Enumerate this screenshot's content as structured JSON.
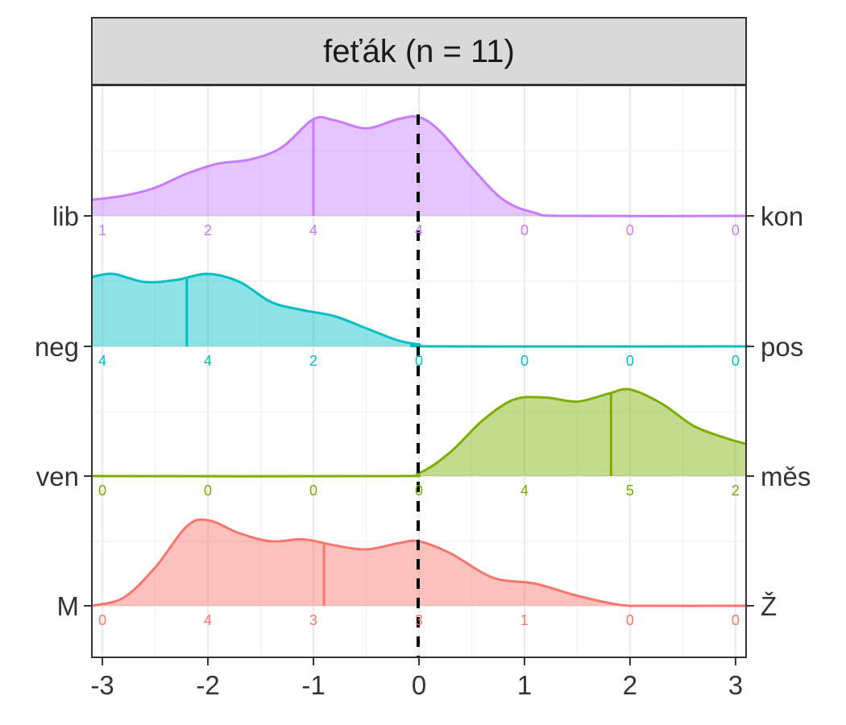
{
  "chart_data": {
    "type": "ridgeline",
    "title": "feťák (n = 11)",
    "xlabel": "",
    "ylabel": "",
    "xlim": [
      -3.1,
      3.1
    ],
    "x_ticks": [
      -3,
      -2,
      -1,
      0,
      1,
      2,
      3
    ],
    "x_tick_labels": [
      "-3",
      "-2",
      "-1",
      "0",
      "1",
      "2",
      "3"
    ],
    "grid": true,
    "reference_line_x": 0,
    "series": [
      {
        "left_label": "lib",
        "right_label": "kon",
        "color": "#C77CFF",
        "median": -1,
        "counts": [
          "1",
          "2",
          "4",
          "4",
          "0",
          "0",
          "0"
        ],
        "density": [
          [
            -3.1,
            0.16
          ],
          [
            -2.8,
            0.2
          ],
          [
            -2.5,
            0.28
          ],
          [
            -2.2,
            0.42
          ],
          [
            -1.9,
            0.52
          ],
          [
            -1.6,
            0.56
          ],
          [
            -1.3,
            0.68
          ],
          [
            -1.0,
            0.96
          ],
          [
            -0.8,
            0.95
          ],
          [
            -0.5,
            0.87
          ],
          [
            -0.2,
            0.96
          ],
          [
            0.0,
            0.98
          ],
          [
            0.2,
            0.84
          ],
          [
            0.5,
            0.48
          ],
          [
            0.8,
            0.16
          ],
          [
            1.1,
            0.03
          ],
          [
            1.4,
            0.0
          ],
          [
            3.1,
            0.0
          ]
        ]
      },
      {
        "left_label": "neg",
        "right_label": "pos",
        "color": "#00BFC4",
        "median": -2.2,
        "counts": [
          "4",
          "4",
          "2",
          "0",
          "0",
          "0",
          "0"
        ],
        "density": [
          [
            -3.1,
            0.69
          ],
          [
            -2.9,
            0.72
          ],
          [
            -2.6,
            0.64
          ],
          [
            -2.3,
            0.66
          ],
          [
            -2.0,
            0.72
          ],
          [
            -1.7,
            0.64
          ],
          [
            -1.4,
            0.44
          ],
          [
            -1.1,
            0.36
          ],
          [
            -0.8,
            0.3
          ],
          [
            -0.5,
            0.18
          ],
          [
            -0.2,
            0.06
          ],
          [
            0.0,
            0.02
          ],
          [
            0.2,
            0.0
          ],
          [
            3.1,
            0.0
          ]
        ]
      },
      {
        "left_label": "ven",
        "right_label": "měs",
        "color": "#7CAE00",
        "median": 1.82,
        "counts": [
          "0",
          "0",
          "0",
          "0",
          "4",
          "5",
          "2"
        ],
        "density": [
          [
            -3.1,
            0.0
          ],
          [
            -0.3,
            0.0
          ],
          [
            0.0,
            0.03
          ],
          [
            0.3,
            0.24
          ],
          [
            0.6,
            0.55
          ],
          [
            0.9,
            0.76
          ],
          [
            1.2,
            0.78
          ],
          [
            1.5,
            0.74
          ],
          [
            1.8,
            0.82
          ],
          [
            2.0,
            0.86
          ],
          [
            2.3,
            0.72
          ],
          [
            2.6,
            0.5
          ],
          [
            2.9,
            0.38
          ],
          [
            3.1,
            0.32
          ]
        ]
      },
      {
        "left_label": "M",
        "right_label": "Ž",
        "color": "#F8766D",
        "median": -0.9,
        "counts": [
          "0",
          "4",
          "3",
          "3",
          "1",
          "0",
          "0"
        ],
        "density": [
          [
            -3.1,
            0.0
          ],
          [
            -2.8,
            0.08
          ],
          [
            -2.5,
            0.38
          ],
          [
            -2.2,
            0.79
          ],
          [
            -2.0,
            0.85
          ],
          [
            -1.7,
            0.72
          ],
          [
            -1.4,
            0.64
          ],
          [
            -1.1,
            0.66
          ],
          [
            -0.8,
            0.6
          ],
          [
            -0.5,
            0.56
          ],
          [
            -0.2,
            0.62
          ],
          [
            0.0,
            0.64
          ],
          [
            0.3,
            0.52
          ],
          [
            0.7,
            0.28
          ],
          [
            1.1,
            0.22
          ],
          [
            1.5,
            0.1
          ],
          [
            1.9,
            0.01
          ],
          [
            2.2,
            0.0
          ],
          [
            3.1,
            0.0
          ]
        ]
      }
    ]
  }
}
